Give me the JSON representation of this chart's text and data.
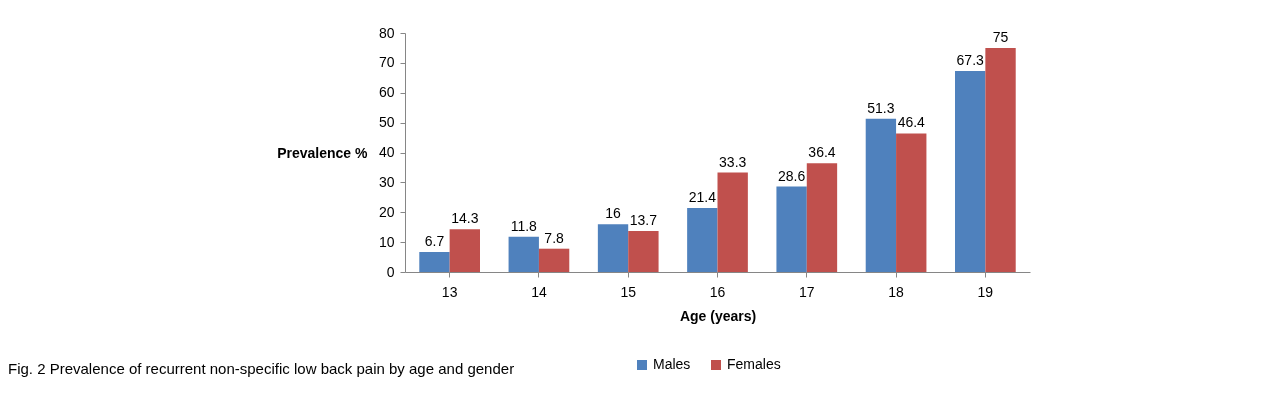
{
  "chart_data": {
    "type": "bar",
    "xlabel": "Age (years)",
    "ylabel": "Prevalence %",
    "categories": [
      "13",
      "14",
      "15",
      "16",
      "17",
      "18",
      "19"
    ],
    "series": [
      {
        "name": "Males",
        "color": "#4f81bd",
        "values": [
          6.7,
          11.8,
          16,
          21.4,
          28.6,
          51.3,
          67.3
        ]
      },
      {
        "name": "Females",
        "color": "#c0504d",
        "values": [
          14.3,
          7.8,
          13.7,
          33.3,
          36.4,
          46.4,
          75
        ]
      }
    ],
    "ylim": [
      0,
      80
    ],
    "yticks": [
      0,
      10,
      20,
      30,
      40,
      50,
      60,
      70,
      80
    ],
    "grid": false,
    "legend": "bottom",
    "data_labels": true,
    "annotations": [
      "Fig. 2 Prevalence of recurrent non-specific low back pain by age and gender"
    ]
  }
}
